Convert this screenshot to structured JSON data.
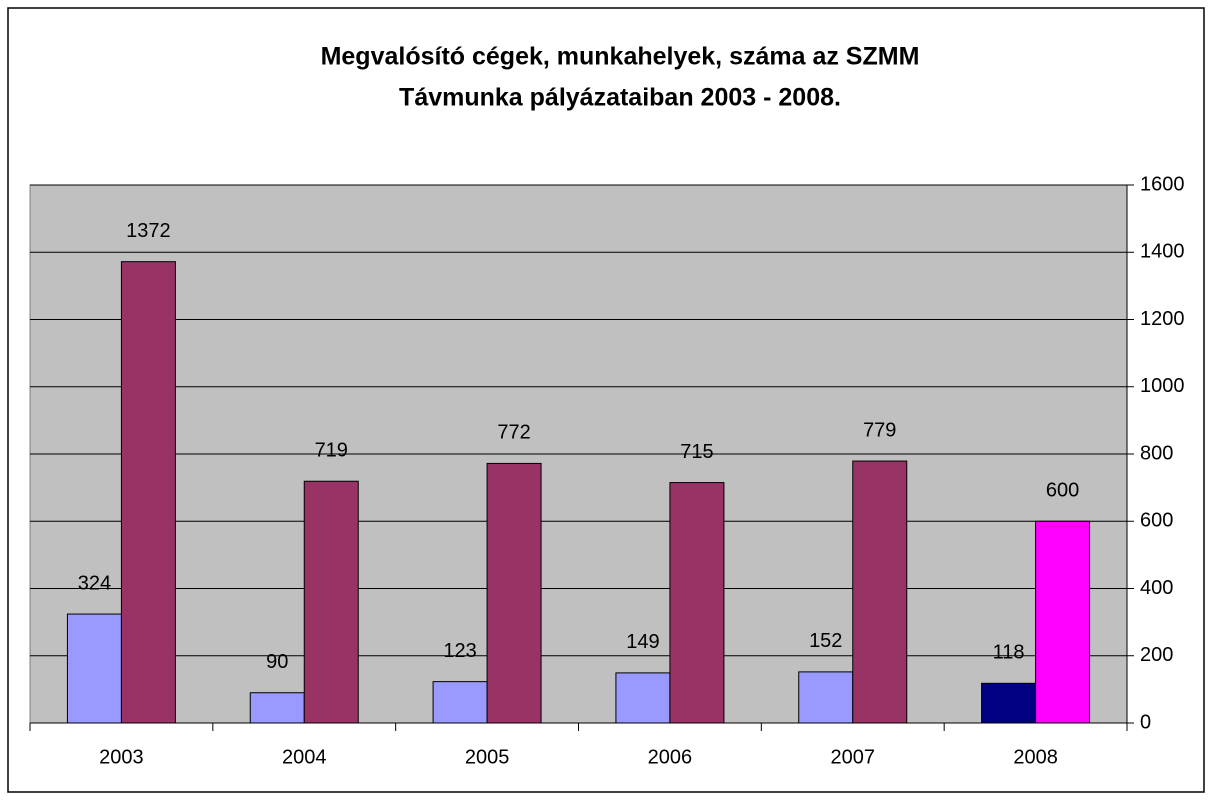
{
  "chart_data": {
    "type": "bar",
    "title": [
      "Megvalósító cégek, munkahelyek,  száma az SZMM",
      "Távmunka pályázataiban 2003 - 2008."
    ],
    "categories": [
      "2003",
      "2004",
      "2005",
      "2006",
      "2007",
      "2008"
    ],
    "series": [
      {
        "values": [
          324,
          90,
          123,
          149,
          152,
          118
        ],
        "colors": [
          "#9999ff",
          "#9999ff",
          "#9999ff",
          "#9999ff",
          "#9999ff",
          "#000080"
        ]
      },
      {
        "values": [
          1372,
          719,
          772,
          715,
          779,
          600
        ],
        "colors": [
          "#993366",
          "#993366",
          "#993366",
          "#993366",
          "#993366",
          "#ff00ff"
        ]
      }
    ],
    "ylim": [
      0,
      1600
    ],
    "yticks": [
      0,
      200,
      400,
      600,
      800,
      1000,
      1200,
      1400,
      1600
    ],
    "grid": true,
    "y_axis_side": "right",
    "plot_background": "#c0c0c0"
  }
}
